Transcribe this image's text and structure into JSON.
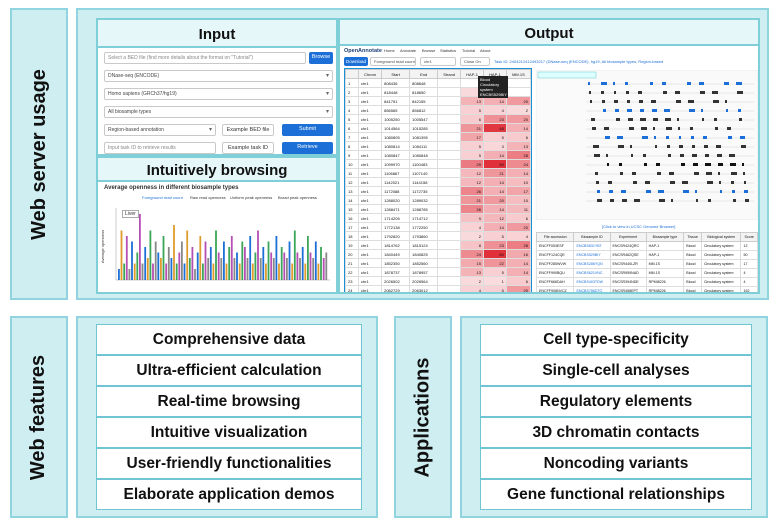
{
  "sections": {
    "usage_label": "Web server usage",
    "features_label": "Web features",
    "applications_label": "Applications"
  },
  "input_panel": {
    "title": "Input",
    "bed_placeholder": "Select a BED file (find more details about the format on \"Tutorial\")",
    "browse_label": "Browse",
    "dataset_select": "DNase-seq (ENCODE)",
    "genome_select": "Homo sapiens (GRCh37/hg19)",
    "biosample_select": "All biosample types",
    "annotation_select": "Region-based annotation",
    "example_bed_label": "Example BED file",
    "submit_label": "Submit",
    "task_placeholder": "Input task ID to retrieve results",
    "example_task_label": "Example task ID",
    "retrieve_label": "Retrieve"
  },
  "browse_panel": {
    "title": "Intuitively browsing",
    "chart_title": "Average openness in different biosample types",
    "legend_items": [
      "Foreground read count",
      "Raw read openness",
      "Uniform peak openness",
      "Broad peak openness"
    ],
    "ylabel": "Average openness",
    "series_label": "Liver"
  },
  "chart_data": {
    "type": "bar",
    "title": "Average openness in different biosample types",
    "ylabel": "Average openness",
    "series": [
      {
        "name": "Liver",
        "values": [
          2,
          9,
          3,
          8,
          2,
          7,
          3,
          5,
          12,
          3,
          6,
          4,
          9,
          3,
          7,
          5,
          4,
          8,
          3,
          6,
          4,
          10,
          3,
          5,
          7,
          3,
          9,
          4,
          6,
          2,
          5,
          8,
          3,
          7,
          4,
          6,
          3,
          9,
          5,
          4,
          7,
          3,
          6,
          8,
          4,
          5,
          3,
          7,
          6,
          4,
          8,
          3,
          5,
          9,
          4,
          6,
          3,
          7,
          5,
          4,
          8,
          3,
          6,
          5,
          4,
          7,
          3,
          9,
          5,
          4,
          6,
          3,
          8,
          5,
          4,
          7,
          3,
          6,
          4,
          5
        ]
      }
    ]
  },
  "output_panel": {
    "title": "Output",
    "logo": "OpenAnnotate",
    "nav": [
      "Home",
      "Annotate",
      "Browse",
      "Statistics",
      "Tutorial",
      "About"
    ],
    "download_label": "Download",
    "fg_select": "Foreground read count",
    "chr_select": "chr1",
    "zoom_select": "Close On",
    "task_text": "Task ID: 2404212412493217 (DNase-seq (ENCODE), hg19, All biosample types, Region-based",
    "columns": [
      "Chrom",
      "Start",
      "End",
      "Strand",
      "HAP-1",
      "HAP-1",
      "MM.1S"
    ],
    "rows": [
      [
        "1",
        "chr1",
        "808436",
        "808648",
        "",
        "",
        "",
        ""
      ],
      [
        "2",
        "chr1",
        "818448",
        "818650",
        "",
        "2",
        "1",
        ""
      ],
      [
        "3",
        "chr1",
        "841751",
        "842155",
        "",
        "13",
        "14",
        "20"
      ],
      [
        "4",
        "chr1",
        "856565",
        "856812",
        "",
        "5",
        "4",
        "2"
      ],
      [
        "5",
        "chr1",
        "1005250",
        "1005547",
        "",
        "6",
        "23",
        "20"
      ],
      [
        "6",
        "chr1",
        "1014564",
        "1015285",
        "",
        "21",
        "48",
        "14"
      ],
      [
        "7",
        "chr1",
        "1080805",
        "1081395",
        "",
        "17",
        "5",
        "6"
      ],
      [
        "8",
        "chr1",
        "1080814",
        "1084111",
        "",
        "5",
        "3",
        "13"
      ],
      [
        "9",
        "chr1",
        "1080847",
        "1080848",
        "",
        "5",
        "14",
        "28"
      ],
      [
        "10",
        "chr1",
        "1099970",
        "1100483",
        "",
        "29",
        "50",
        "24"
      ],
      [
        "11",
        "chr1",
        "1106867",
        "1107149",
        "",
        "12",
        "21",
        "14"
      ],
      [
        "12",
        "chr1",
        "1142021",
        "1144158",
        "",
        "12",
        "14",
        "10"
      ],
      [
        "13",
        "chr1",
        "1172088",
        "1172735",
        "",
        "26",
        "14",
        "17"
      ],
      [
        "14",
        "chr1",
        "1288020",
        "1289032",
        "",
        "21",
        "20",
        "10"
      ],
      [
        "15",
        "chr1",
        "1288471",
        "1288785",
        "",
        "26",
        "14",
        "11"
      ],
      [
        "16",
        "chr1",
        "1714205",
        "1714712",
        "",
        "9",
        "12",
        "6"
      ],
      [
        "17",
        "chr1",
        "1772138",
        "1772250",
        "",
        "4",
        "14",
        "20"
      ],
      [
        "18",
        "chr1",
        "1792820",
        "1793860",
        "",
        "2",
        "5",
        "4"
      ],
      [
        "19",
        "chr1",
        "1814762",
        "1815124",
        "",
        "8",
        "23",
        "28"
      ],
      [
        "20",
        "chr1",
        "1840449",
        "1840825",
        "",
        "24",
        "60",
        "16"
      ],
      [
        "21",
        "chr1",
        "1852350",
        "1852560",
        "",
        "15",
        "22",
        "14"
      ],
      [
        "22",
        "chr1",
        "1878737",
        "1878957",
        "",
        "13",
        "5",
        "14"
      ],
      [
        "23",
        "chr1",
        "2026502",
        "2026564",
        "",
        "2",
        "1",
        "6"
      ],
      [
        "24",
        "chr1",
        "2062729",
        "2063012",
        "",
        "4",
        "5",
        "20"
      ],
      [
        "25",
        "chr1",
        "2140151",
        "2140207",
        "",
        "22",
        "9",
        "14"
      ],
      [
        "26",
        "chr1",
        "2142323",
        "2142566",
        "",
        "48",
        "41",
        "16"
      ],
      [
        "27",
        "chr1",
        "2171824",
        "2171946",
        "",
        "6",
        "4",
        "1"
      ],
      [
        "28",
        "chr1",
        "2172140",
        "2172380",
        "",
        "10",
        "14",
        "5"
      ],
      [
        "29",
        "chr1",
        "2177614",
        "2177829",
        "",
        "14",
        "12",
        "22"
      ],
      [
        "30",
        "chr1",
        "2185036",
        "2185574",
        "",
        "2",
        "5",
        "0"
      ],
      [
        "31",
        "chr1",
        "2221868",
        "2222548",
        "",
        "18",
        "34",
        "13"
      ]
    ],
    "tooltip": "Blood Circulatory system ENCBS529BIY",
    "ucsc_link": "[Click to view in UCSC Genome Browser]",
    "table2_headers": [
      "File accession",
      "Biosample ID",
      "Experiment",
      "Biosample type",
      "Tissue",
      "Biological system",
      "Score"
    ],
    "table2_rows": [
      [
        "ENCFF053ESF",
        "ENCBS831YBT",
        "ENCSR424QRC",
        "HAP-1",
        "Blood",
        "Circulatory system",
        "12"
      ],
      [
        "ENCFF124CQE",
        "ENCBS529BIY",
        "ENCSR462QSE",
        "HAP-1",
        "Blood",
        "Circulatory system",
        "50"
      ],
      [
        "ENCFF285WVW",
        "ENCBS286YQN",
        "ENCSR440LZR",
        "MM.1S",
        "Blood",
        "Circulatory system",
        "17"
      ],
      [
        "ENCFF990BQU",
        "ENCBS621VNC",
        "ENCSR959NAD",
        "MM.1S",
        "Blood",
        "Circulatory system",
        "4"
      ],
      [
        "ENCFF666DAH",
        "ENCBS403TDW",
        "ENCSR394NDE",
        "RPMI8226",
        "Blood",
        "Circulatory system",
        "4"
      ],
      [
        "ENCFF908NVCZ",
        "ENCBS786DTO",
        "ENCSR458EPT",
        "RPMI8226",
        "Blood",
        "Circulatory system",
        "152"
      ],
      [
        "ENCFF001GAB",
        "ENCBS165XRO",
        "ENCSR000ENH",
        "Cardiac fibroblast",
        "Heart",
        "Circulatory system",
        "8"
      ],
      [
        "ENCFF001GAD",
        "ENCBS774HYQ",
        "ENCSR000ENH",
        "Cardiac fibroblast",
        "Heart",
        "Circulatory system",
        "6"
      ],
      [
        "ENCFF001GAE",
        "ENCBS074AAN",
        "ENCSR000ENI",
        "Cardiac fibroblast",
        "Heart",
        "Circulatory system",
        "8"
      ]
    ]
  },
  "features": [
    "Comprehensive data",
    "Ultra-efficient calculation",
    "Real-time browsing",
    "Intuitive visualization",
    "User-friendly functionalities",
    "Elaborate application demos"
  ],
  "applications": [
    "Cell type-specificity",
    "Single-cell analyses",
    "Regulatory elements",
    "3D chromatin contacts",
    "Noncoding variants",
    "Gene functional relationships"
  ],
  "colors": {
    "section_bg": "#cfeef2",
    "section_border": "#8fd4de",
    "accent_blue": "#1c6fd6",
    "heat_red": "#e0313b"
  }
}
